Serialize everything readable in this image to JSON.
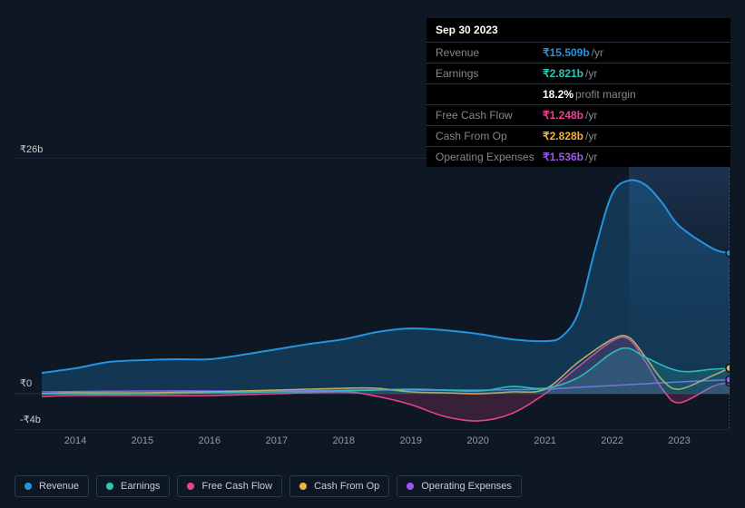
{
  "chart": {
    "type": "area",
    "background_color": "#0e1824",
    "plot_background": "#0e1824",
    "grid_color": "#2a3440",
    "x_axis": {
      "years": [
        2014,
        2015,
        2016,
        2017,
        2018,
        2019,
        2020,
        2021,
        2022,
        2023
      ],
      "tick_color": "#999",
      "fontsize": 11
    },
    "y_axis": {
      "max_label": "₹26b",
      "zero_label": "₹0",
      "min_label": "-₹4b",
      "max_val": 26,
      "zero_val": 0,
      "min_val": -4,
      "tick_color": "#ccc",
      "fontsize": 11
    },
    "highlight_band": {
      "start_year": 2022.25,
      "end_year": 2023.75,
      "color_top": "#1a3050",
      "color_bottom": "#0e1824"
    },
    "marker_x": 2023.75,
    "marker_dot_color": "#2394df",
    "series": [
      {
        "name": "Revenue",
        "color": "#2394df",
        "fill_opacity": 0.25,
        "line_width": 2,
        "data": [
          [
            2013.5,
            2.3
          ],
          [
            2014,
            2.8
          ],
          [
            2014.5,
            3.5
          ],
          [
            2015,
            3.7
          ],
          [
            2015.5,
            3.8
          ],
          [
            2016,
            3.8
          ],
          [
            2016.5,
            4.3
          ],
          [
            2017,
            4.9
          ],
          [
            2017.5,
            5.5
          ],
          [
            2018,
            6.0
          ],
          [
            2018.5,
            6.8
          ],
          [
            2019,
            7.2
          ],
          [
            2019.5,
            7.0
          ],
          [
            2020,
            6.6
          ],
          [
            2020.5,
            6.0
          ],
          [
            2021,
            5.8
          ],
          [
            2021.25,
            6.3
          ],
          [
            2021.5,
            9.0
          ],
          [
            2021.75,
            16.0
          ],
          [
            2022,
            22.0
          ],
          [
            2022.25,
            23.5
          ],
          [
            2022.5,
            23.0
          ],
          [
            2022.75,
            21.0
          ],
          [
            2023,
            18.5
          ],
          [
            2023.5,
            16.0
          ],
          [
            2023.75,
            15.5
          ]
        ]
      },
      {
        "name": "Earnings",
        "color": "#2dc9b5",
        "fill_opacity": 0.2,
        "line_width": 1.6,
        "data": [
          [
            2013.5,
            0.0
          ],
          [
            2015,
            0.0
          ],
          [
            2016,
            0.1
          ],
          [
            2017,
            0.2
          ],
          [
            2018,
            0.3
          ],
          [
            2019,
            0.5
          ],
          [
            2020,
            0.3
          ],
          [
            2020.5,
            0.8
          ],
          [
            2021,
            0.6
          ],
          [
            2021.5,
            1.8
          ],
          [
            2022,
            4.5
          ],
          [
            2022.25,
            5.0
          ],
          [
            2022.5,
            4.0
          ],
          [
            2023,
            2.5
          ],
          [
            2023.5,
            2.7
          ],
          [
            2023.75,
            2.8
          ]
        ]
      },
      {
        "name": "Free Cash Flow",
        "color": "#e84393",
        "fill_opacity": 0.2,
        "line_width": 1.6,
        "data": [
          [
            2013.5,
            -0.3
          ],
          [
            2014,
            -0.2
          ],
          [
            2015,
            -0.2
          ],
          [
            2016,
            -0.2
          ],
          [
            2017,
            0.0
          ],
          [
            2018,
            0.2
          ],
          [
            2018.5,
            -0.3
          ],
          [
            2019,
            -1.2
          ],
          [
            2019.5,
            -2.5
          ],
          [
            2020,
            -3.0
          ],
          [
            2020.5,
            -2.2
          ],
          [
            2021,
            0.0
          ],
          [
            2021.5,
            3.0
          ],
          [
            2022,
            5.8
          ],
          [
            2022.25,
            6.0
          ],
          [
            2022.5,
            3.5
          ],
          [
            2022.75,
            0.5
          ],
          [
            2023,
            -1.0
          ],
          [
            2023.5,
            0.8
          ],
          [
            2023.75,
            1.25
          ]
        ]
      },
      {
        "name": "Cash From Op",
        "color": "#f1b33c",
        "fill_opacity": 0.0,
        "line_width": 1.6,
        "data": [
          [
            2013.5,
            0.0
          ],
          [
            2014,
            0.1
          ],
          [
            2015,
            0.1
          ],
          [
            2016,
            0.2
          ],
          [
            2017,
            0.4
          ],
          [
            2018,
            0.6
          ],
          [
            2018.5,
            0.6
          ],
          [
            2019,
            0.2
          ],
          [
            2019.5,
            0.1
          ],
          [
            2020,
            0.0
          ],
          [
            2020.5,
            0.2
          ],
          [
            2021,
            0.5
          ],
          [
            2021.5,
            3.5
          ],
          [
            2022,
            6.0
          ],
          [
            2022.25,
            6.2
          ],
          [
            2022.5,
            4.0
          ],
          [
            2022.75,
            1.5
          ],
          [
            2023,
            0.5
          ],
          [
            2023.5,
            2.0
          ],
          [
            2023.75,
            2.83
          ]
        ]
      },
      {
        "name": "Operating Expenses",
        "color": "#9b59f0",
        "fill_opacity": 0.0,
        "line_width": 1.6,
        "data": [
          [
            2013.5,
            0.2
          ],
          [
            2015,
            0.3
          ],
          [
            2016,
            0.3
          ],
          [
            2017,
            0.3
          ],
          [
            2018,
            0.4
          ],
          [
            2019,
            0.4
          ],
          [
            2020,
            0.4
          ],
          [
            2021,
            0.5
          ],
          [
            2021.5,
            0.7
          ],
          [
            2022,
            0.9
          ],
          [
            2022.5,
            1.1
          ],
          [
            2023,
            1.3
          ],
          [
            2023.75,
            1.54
          ]
        ]
      }
    ]
  },
  "tooltip": {
    "date": "Sep 30 2023",
    "rows": [
      {
        "label": "Revenue",
        "value": "₹15.509b",
        "suffix": "/yr",
        "color": "#2394df"
      },
      {
        "label": "Earnings",
        "value": "₹2.821b",
        "suffix": "/yr",
        "color": "#2dc9b5"
      },
      {
        "label": "",
        "value": "18.2%",
        "suffix": "profit margin",
        "color": "#ffffff"
      },
      {
        "label": "Free Cash Flow",
        "value": "₹1.248b",
        "suffix": "/yr",
        "color": "#e84393"
      },
      {
        "label": "Cash From Op",
        "value": "₹2.828b",
        "suffix": "/yr",
        "color": "#f1b33c"
      },
      {
        "label": "Operating Expenses",
        "value": "₹1.536b",
        "suffix": "/yr",
        "color": "#9b59f0"
      }
    ]
  },
  "legend": {
    "items": [
      {
        "label": "Revenue",
        "color": "#2394df"
      },
      {
        "label": "Earnings",
        "color": "#2dc9b5"
      },
      {
        "label": "Free Cash Flow",
        "color": "#e84393"
      },
      {
        "label": "Cash From Op",
        "color": "#f1b33c"
      },
      {
        "label": "Operating Expenses",
        "color": "#9b59f0"
      }
    ]
  }
}
